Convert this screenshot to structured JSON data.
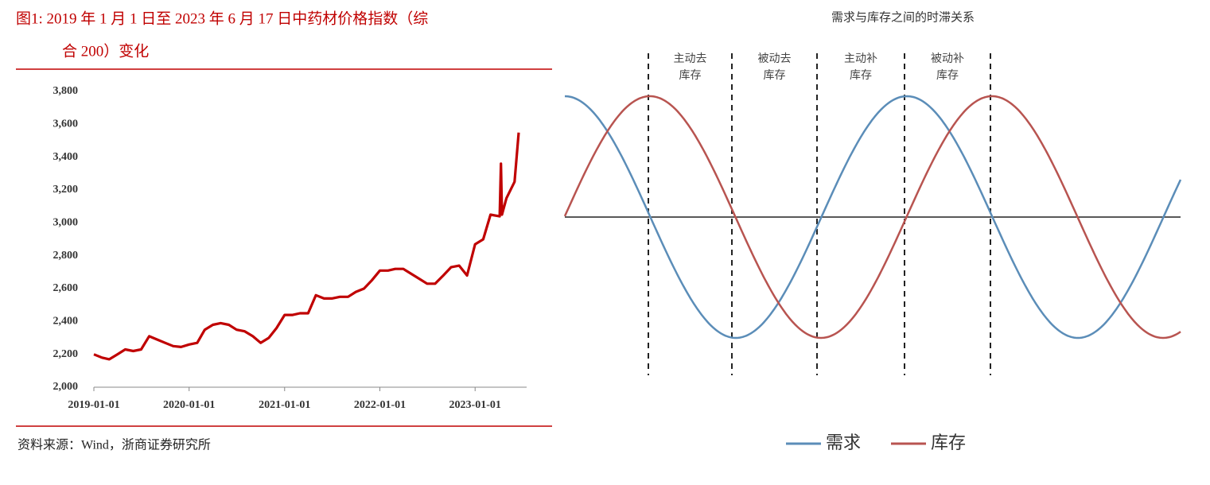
{
  "chart_data": [
    {
      "type": "line",
      "title": [
        "图1:   2019 年 1 月 1 日至 2023 年 6 月 17 日中药材价格指数（综",
        "合 200）变化"
      ],
      "source": "资料来源：Wind，浙商证券研究所",
      "color": "#c00000",
      "x": [
        "2019-01-01",
        "2019-02-01",
        "2019-03-01",
        "2019-04-01",
        "2019-05-01",
        "2019-06-01",
        "2019-07-01",
        "2019-08-01",
        "2019-09-01",
        "2019-10-01",
        "2019-11-01",
        "2019-12-01",
        "2020-01-01",
        "2020-02-01",
        "2020-03-01",
        "2020-04-01",
        "2020-05-01",
        "2020-06-01",
        "2020-07-01",
        "2020-08-01",
        "2020-09-01",
        "2020-10-01",
        "2020-11-01",
        "2020-12-01",
        "2021-01-01",
        "2021-02-01",
        "2021-03-01",
        "2021-04-01",
        "2021-05-01",
        "2021-06-01",
        "2021-07-01",
        "2021-08-01",
        "2021-09-01",
        "2021-10-01",
        "2021-11-01",
        "2021-12-01",
        "2022-01-01",
        "2022-02-01",
        "2022-03-01",
        "2022-04-01",
        "2022-05-01",
        "2022-06-01",
        "2022-07-01",
        "2022-08-01",
        "2022-09-01",
        "2022-10-01",
        "2022-11-01",
        "2022-12-01",
        "2023-01-01",
        "2023-02-01",
        "2023-03-01",
        "2023-04-05",
        "2023-04-10",
        "2023-04-14",
        "2023-05-01",
        "2023-06-01",
        "2023-06-17"
      ],
      "values": [
        2200,
        2180,
        2170,
        2200,
        2230,
        2220,
        2230,
        2310,
        2290,
        2270,
        2250,
        2245,
        2260,
        2270,
        2350,
        2380,
        2390,
        2380,
        2350,
        2340,
        2310,
        2270,
        2300,
        2360,
        2440,
        2440,
        2450,
        2450,
        2560,
        2540,
        2540,
        2550,
        2550,
        2580,
        2600,
        2650,
        2710,
        2710,
        2720,
        2720,
        2690,
        2660,
        2630,
        2630,
        2680,
        2730,
        2740,
        2680,
        2870,
        2900,
        3050,
        3040,
        3360,
        3050,
        3150,
        3250,
        3550
      ],
      "xlim": [
        "2019-01-01",
        "2023-06-17"
      ],
      "xticks": [
        "2019-01-01",
        "2020-01-01",
        "2021-01-01",
        "2022-01-01",
        "2023-01-01"
      ],
      "ylim": [
        2000,
        3800
      ],
      "yticks": [
        {
          "value": 2000,
          "label": "2,000"
        },
        {
          "value": 2200,
          "label": "2,200"
        },
        {
          "value": 2400,
          "label": "2,400"
        },
        {
          "value": 2600,
          "label": "2,600"
        },
        {
          "value": 2800,
          "label": "2,800"
        },
        {
          "value": 3000,
          "label": "3,000"
        },
        {
          "value": 3200,
          "label": "3,200"
        },
        {
          "value": 3400,
          "label": "3,400"
        },
        {
          "value": 3600,
          "label": "3,600"
        },
        {
          "value": 3800,
          "label": "3,800"
        }
      ]
    },
    {
      "type": "cycle-diagram",
      "title": "需求与库存之间的时滞关系",
      "phases": [
        [
          "主动去",
          "库存"
        ],
        [
          "被动去",
          "库存"
        ],
        [
          "主动补",
          "库存"
        ],
        [
          "被动补",
          "库存"
        ]
      ],
      "series": [
        {
          "name": "需求",
          "color": "#5b8db8"
        },
        {
          "name": "库存",
          "color": "#b85450"
        }
      ]
    }
  ]
}
